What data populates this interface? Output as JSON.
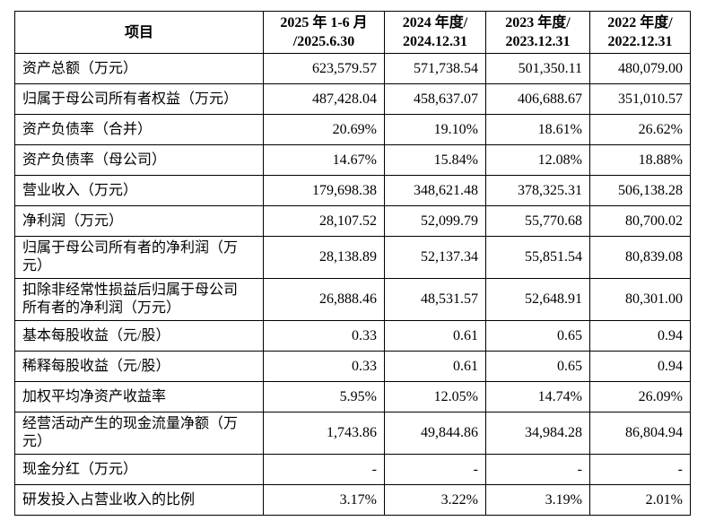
{
  "table": {
    "border_color": "#000000",
    "background": "#ffffff",
    "columns": [
      "项目",
      "2025 年 1-6 月\n/2025.6.30",
      "2024 年度/\n2024.12.31",
      "2023 年度/\n2023.12.31",
      "2022 年度/\n2022.12.31"
    ],
    "rows": [
      {
        "label": "资产总额（万元）",
        "values": [
          "623,579.57",
          "571,738.54",
          "501,350.11",
          "480,079.00"
        ]
      },
      {
        "label": "归属于母公司所有者权益（万元）",
        "values": [
          "487,428.04",
          "458,637.07",
          "406,688.67",
          "351,010.57"
        ]
      },
      {
        "label": "资产负债率（合并）",
        "values": [
          "20.69%",
          "19.10%",
          "18.61%",
          "26.62%"
        ]
      },
      {
        "label": "资产负债率（母公司）",
        "values": [
          "14.67%",
          "15.84%",
          "12.08%",
          "18.88%"
        ]
      },
      {
        "label": "营业收入（万元）",
        "values": [
          "179,698.38",
          "348,621.48",
          "378,325.31",
          "506,138.28"
        ]
      },
      {
        "label": "净利润（万元）",
        "values": [
          "28,107.52",
          "52,099.79",
          "55,770.68",
          "80,700.02"
        ]
      },
      {
        "label": "归属于母公司所有者的净利润（万元）",
        "values": [
          "28,138.89",
          "52,137.34",
          "55,851.54",
          "80,839.08"
        ]
      },
      {
        "label": "扣除非经常性损益后归属于母公司所有者的净利润（万元）",
        "values": [
          "26,888.46",
          "48,531.57",
          "52,648.91",
          "80,301.00"
        ]
      },
      {
        "label": "基本每股收益（元/股）",
        "values": [
          "0.33",
          "0.61",
          "0.65",
          "0.94"
        ]
      },
      {
        "label": "稀释每股收益（元/股）",
        "values": [
          "0.33",
          "0.61",
          "0.65",
          "0.94"
        ]
      },
      {
        "label": "加权平均净资产收益率",
        "values": [
          "5.95%",
          "12.05%",
          "14.74%",
          "26.09%"
        ]
      },
      {
        "label": "经营活动产生的现金流量净额（万元）",
        "values": [
          "1,743.86",
          "49,844.86",
          "34,984.28",
          "86,804.94"
        ]
      },
      {
        "label": "现金分红（万元）",
        "values": [
          "-",
          "-",
          "-",
          "-"
        ]
      },
      {
        "label": "研发投入占营业收入的比例",
        "values": [
          "3.17%",
          "3.22%",
          "3.19%",
          "2.01%"
        ]
      }
    ]
  }
}
